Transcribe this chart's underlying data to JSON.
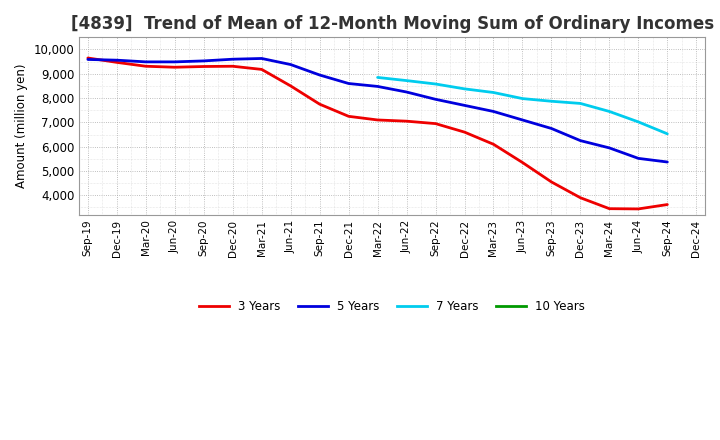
{
  "title": "[4839]  Trend of Mean of 12-Month Moving Sum of Ordinary Incomes",
  "ylabel": "Amount (million yen)",
  "background_color": "#ffffff",
  "plot_bg_color": "#ffffff",
  "title_fontsize": 12,
  "title_color": "#333333",
  "ylim": [
    3200,
    10500
  ],
  "yticks": [
    4000,
    5000,
    6000,
    7000,
    8000,
    9000,
    10000
  ],
  "series": {
    "3 Years": {
      "color": "#ee0000",
      "data": {
        "Sep-19": 9650,
        "Dec-19": 9470,
        "Mar-20": 9310,
        "Jun-20": 9270,
        "Sep-20": 9300,
        "Dec-20": 9310,
        "Mar-21": 9180,
        "Jun-21": 8500,
        "Sep-21": 7750,
        "Dec-21": 7250,
        "Mar-22": 7100,
        "Jun-22": 7050,
        "Sep-22": 6950,
        "Dec-22": 6600,
        "Mar-23": 6100,
        "Jun-23": 5350,
        "Sep-23": 4550,
        "Dec-23": 3900,
        "Mar-24": 3450,
        "Jun-24": 3440,
        "Sep-24": 3620
      }
    },
    "5 Years": {
      "color": "#0000dd",
      "data": {
        "Sep-19": 9590,
        "Dec-19": 9560,
        "Mar-20": 9490,
        "Jun-20": 9490,
        "Sep-20": 9530,
        "Dec-20": 9600,
        "Mar-21": 9630,
        "Jun-21": 9380,
        "Sep-21": 8950,
        "Dec-21": 8600,
        "Mar-22": 8480,
        "Jun-22": 8250,
        "Sep-22": 7950,
        "Dec-22": 7700,
        "Mar-23": 7450,
        "Jun-23": 7100,
        "Sep-23": 6750,
        "Dec-23": 6250,
        "Mar-24": 5950,
        "Jun-24": 5520,
        "Sep-24": 5370
      }
    },
    "7 Years": {
      "color": "#00ccee",
      "data": {
        "Mar-22": 8850,
        "Jun-22": 8720,
        "Sep-22": 8580,
        "Dec-22": 8380,
        "Mar-23": 8230,
        "Jun-23": 7980,
        "Sep-23": 7870,
        "Dec-23": 7780,
        "Mar-24": 7450,
        "Jun-24": 7020,
        "Sep-24": 6530
      }
    },
    "10 Years": {
      "color": "#009900",
      "data": {}
    }
  },
  "xtick_labels": [
    "Sep-19",
    "Dec-19",
    "Mar-20",
    "Jun-20",
    "Sep-20",
    "Dec-20",
    "Mar-21",
    "Jun-21",
    "Sep-21",
    "Dec-21",
    "Mar-22",
    "Jun-22",
    "Sep-22",
    "Dec-22",
    "Mar-23",
    "Jun-23",
    "Sep-23",
    "Dec-23",
    "Mar-24",
    "Jun-24",
    "Sep-24",
    "Dec-24"
  ],
  "legend_entries": [
    "3 Years",
    "5 Years",
    "7 Years",
    "10 Years"
  ],
  "legend_colors": [
    "#ee0000",
    "#0000dd",
    "#00ccee",
    "#009900"
  ]
}
